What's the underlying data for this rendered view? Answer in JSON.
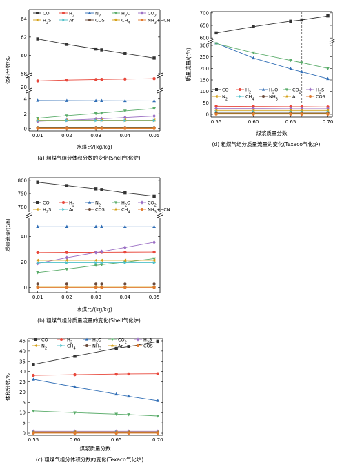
{
  "chart_data": [
    {
      "type": "line",
      "id": "a",
      "caption": "(a) 粗煤气组分体积分数的变化(Shell气化炉)",
      "xlabel": "水煤比/(kg/kg)",
      "ylabel": "体积分数/%",
      "x": [
        0.01,
        0.02,
        0.03,
        0.032,
        0.04,
        0.05
      ],
      "xticks": [
        "0.01",
        "0.02",
        "0.03",
        "0.04",
        "0.05"
      ],
      "segments": [
        {
          "range": [
            58,
            65
          ],
          "ticks": [
            "58",
            "60",
            "62",
            "64"
          ]
        },
        {
          "range": [
            19.8,
            21.2
          ],
          "ticks": [
            "20"
          ]
        },
        {
          "range": [
            -0.3,
            5
          ],
          "ticks": [
            "0",
            "2",
            "4"
          ]
        }
      ],
      "legend": [
        "CO",
        "H2",
        "N2",
        "H2O",
        "CO2",
        "H2S",
        "Ar",
        "COS",
        "CH4",
        "NH3+HCN"
      ],
      "series": [
        {
          "name": "CO",
          "color": "#333333",
          "marker": "square",
          "values": [
            61.8,
            61.2,
            60.7,
            60.6,
            60.2,
            59.7
          ]
        },
        {
          "name": "H2",
          "color": "#e8473b",
          "marker": "circle",
          "values": [
            20.7,
            20.8,
            20.85,
            20.87,
            20.9,
            20.95
          ]
        },
        {
          "name": "N2",
          "color": "#2f6db5",
          "marker": "triangle-up",
          "values": [
            3.8,
            3.78,
            3.77,
            3.77,
            3.76,
            3.75
          ]
        },
        {
          "name": "H2O",
          "color": "#5aac6a",
          "marker": "triangle-down",
          "values": [
            1.4,
            1.75,
            2.05,
            2.12,
            2.4,
            2.7
          ]
        },
        {
          "name": "CO2",
          "color": "#9b6fc4",
          "marker": "diamond",
          "values": [
            1.0,
            1.15,
            1.3,
            1.33,
            1.5,
            1.7
          ]
        },
        {
          "name": "H2S",
          "color": "#d4a017",
          "marker": "triangle-left",
          "values": [
            1.15,
            1.15,
            1.15,
            1.15,
            1.15,
            1.15
          ]
        },
        {
          "name": "Ar",
          "color": "#4dc0c8",
          "marker": "triangle-right",
          "values": [
            1.1,
            1.1,
            1.1,
            1.1,
            1.1,
            1.1
          ]
        },
        {
          "name": "COS",
          "color": "#6a4a3a",
          "marker": "circle",
          "values": [
            0.12,
            0.12,
            0.12,
            0.12,
            0.12,
            0.12
          ]
        },
        {
          "name": "CH4",
          "color": "#d4a017",
          "marker": "star",
          "values": [
            0.05,
            0.05,
            0.05,
            0.05,
            0.05,
            0.05
          ]
        },
        {
          "name": "NH3+HCN",
          "color": "#e07a2e",
          "marker": "circle",
          "values": [
            0.02,
            0.02,
            0.02,
            0.02,
            0.02,
            0.02
          ]
        }
      ]
    },
    {
      "type": "line",
      "id": "b",
      "caption": "(b) 粗煤气组分质量流量的变化(Shell气化炉)",
      "xlabel": "水煤比/(kg/kg)",
      "ylabel": "质量流量/(t/h)",
      "x": [
        0.01,
        0.02,
        0.03,
        0.032,
        0.04,
        0.05
      ],
      "xticks": [
        "0.01",
        "0.02",
        "0.03",
        "0.04",
        "0.05"
      ],
      "segments": [
        {
          "range": [
            776,
            802
          ],
          "ticks": [
            "780",
            "790",
            "800"
          ]
        },
        {
          "range": [
            -4,
            55
          ],
          "ticks": [
            "0",
            "20",
            "40"
          ]
        }
      ],
      "legend": [
        "CO",
        "H2",
        "N2",
        "H2O",
        "CO2",
        "H2S",
        "Ar",
        "COS",
        "CH4",
        "NH3+HCN"
      ],
      "series": [
        {
          "name": "CO",
          "color": "#333333",
          "marker": "square",
          "values": [
            798.5,
            796,
            793.5,
            793,
            790.5,
            788
          ]
        },
        {
          "name": "H2",
          "color": "#e8473b",
          "marker": "circle",
          "values": [
            27.5,
            27.6,
            27.7,
            27.7,
            27.8,
            27.9
          ]
        },
        {
          "name": "N2",
          "color": "#2f6db5",
          "marker": "triangle-up",
          "values": [
            47.8,
            47.8,
            47.8,
            47.8,
            47.8,
            47.8
          ]
        },
        {
          "name": "H2O",
          "color": "#5aac6a",
          "marker": "triangle-down",
          "values": [
            11.8,
            14.5,
            17.5,
            18,
            20,
            22.8
          ]
        },
        {
          "name": "CO2",
          "color": "#9b6fc4",
          "marker": "diamond",
          "values": [
            19,
            23.5,
            27.5,
            28.3,
            31.5,
            35.6
          ]
        },
        {
          "name": "H2S",
          "color": "#d4a017",
          "marker": "triangle-left",
          "values": [
            21.5,
            21.5,
            21.5,
            21.5,
            21.5,
            21.5
          ]
        },
        {
          "name": "Ar",
          "color": "#4dc0c8",
          "marker": "triangle-right",
          "values": [
            19.5,
            19.5,
            19.5,
            19.5,
            19.5,
            19.5
          ]
        },
        {
          "name": "COS",
          "color": "#6a4a3a",
          "marker": "circle",
          "values": [
            2.8,
            2.8,
            2.8,
            2.8,
            2.8,
            2.8
          ]
        },
        {
          "name": "CH4",
          "color": "#d4a017",
          "marker": "star",
          "values": [
            0.3,
            0.3,
            0.3,
            0.3,
            0.3,
            0.3
          ]
        },
        {
          "name": "NH3+HCN",
          "color": "#e07a2e",
          "marker": "circle",
          "values": [
            0.1,
            0.1,
            0.1,
            0.1,
            0.1,
            0.1
          ]
        }
      ]
    },
    {
      "type": "line",
      "id": "c",
      "caption": "(c) 粗煤气组分体积分数的变化(Texaco气化炉)",
      "xlabel": "煤浆质量分数",
      "ylabel": "体积分数/%",
      "x": [
        0.55,
        0.6,
        0.65,
        0.665,
        0.7
      ],
      "xticks": [
        "0.55",
        "0.60",
        "0.65",
        "0.70"
      ],
      "segments": [
        {
          "range": [
            -1,
            46
          ],
          "ticks": [
            "0",
            "5",
            "10",
            "15",
            "20",
            "25",
            "30",
            "35",
            "40",
            "45"
          ]
        }
      ],
      "legend": [
        "CO",
        "H2",
        "H2O",
        "CO2",
        "H2S",
        "N2",
        "CH4",
        "NH3",
        "Ar",
        "COS"
      ],
      "series": [
        {
          "name": "CO",
          "color": "#333333",
          "marker": "square",
          "values": [
            33.5,
            37.5,
            41.3,
            42.2,
            44.7
          ]
        },
        {
          "name": "H2",
          "color": "#e8473b",
          "marker": "circle",
          "values": [
            28.2,
            28.5,
            28.8,
            28.9,
            29.0
          ]
        },
        {
          "name": "H2O",
          "color": "#2f6db5",
          "marker": "triangle-up",
          "values": [
            26.2,
            22.5,
            19.0,
            18.0,
            15.8
          ]
        },
        {
          "name": "CO2",
          "color": "#5aac6a",
          "marker": "triangle-down",
          "values": [
            10.8,
            10.0,
            9.3,
            9.1,
            8.4
          ]
        },
        {
          "name": "H2S",
          "color": "#9b6fc4",
          "marker": "diamond",
          "values": [
            0.9,
            0.9,
            0.9,
            0.9,
            0.9
          ]
        },
        {
          "name": "N2",
          "color": "#d4a017",
          "marker": "triangle-left",
          "values": [
            0.6,
            0.6,
            0.6,
            0.6,
            0.6
          ]
        },
        {
          "name": "CH4",
          "color": "#4dc0c8",
          "marker": "triangle-right",
          "values": [
            0.4,
            0.4,
            0.4,
            0.4,
            0.4
          ]
        },
        {
          "name": "NH3",
          "color": "#6a4a3a",
          "marker": "circle",
          "values": [
            0.2,
            0.2,
            0.2,
            0.2,
            0.2
          ]
        },
        {
          "name": "Ar",
          "color": "#d4a017",
          "marker": "star",
          "values": [
            0.1,
            0.1,
            0.1,
            0.1,
            0.1
          ]
        },
        {
          "name": "COS",
          "color": "#e07a2e",
          "marker": "circle",
          "values": [
            0.05,
            0.05,
            0.05,
            0.05,
            0.05
          ]
        }
      ]
    },
    {
      "type": "line",
      "id": "d",
      "caption": "(d) 粗煤气组分质量流量的变化(Texaco气化炉)",
      "xlabel": "煤浆质量分数",
      "ylabel": "质量流量/(t/h)",
      "x": [
        0.55,
        0.6,
        0.65,
        0.665,
        0.7
      ],
      "xticks": [
        "0.55",
        "0.60",
        "0.65",
        "0.70"
      ],
      "vline": 0.665,
      "segments": [
        {
          "range": [
            595,
            705
          ],
          "ticks": [
            "600",
            "650",
            "700"
          ]
        },
        {
          "range": [
            -12,
            312
          ],
          "ticks": [
            "0",
            "50",
            "100",
            "150",
            "200",
            "250",
            "300"
          ]
        }
      ],
      "legend": [
        "CO",
        "H2",
        "H2O",
        "CO2",
        "H2S",
        "N2",
        "CH4",
        "NH3",
        "Ar",
        "COS"
      ],
      "series": [
        {
          "name": "CO",
          "color": "#333333",
          "marker": "square",
          "values": [
            620,
            645,
            667,
            672,
            688
          ]
        },
        {
          "name": "H2",
          "color": "#e8473b",
          "marker": "circle",
          "values": [
            35,
            34,
            33,
            33,
            32
          ]
        },
        {
          "name": "H2O",
          "color": "#2f6db5",
          "marker": "triangle-up",
          "values": [
            310,
            245,
            198,
            185,
            155
          ]
        },
        {
          "name": "CO2",
          "color": "#5aac6a",
          "marker": "triangle-down",
          "values": [
            308,
            268,
            235,
            225,
            200
          ]
        },
        {
          "name": "H2S",
          "color": "#9b6fc4",
          "marker": "diamond",
          "values": [
            25,
            25,
            24,
            24,
            24
          ]
        },
        {
          "name": "N2",
          "color": "#d4a017",
          "marker": "triangle-left",
          "values": [
            17,
            17,
            17,
            17,
            17
          ]
        },
        {
          "name": "CH4",
          "color": "#4dc0c8",
          "marker": "triangle-right",
          "values": [
            11,
            11,
            11,
            11,
            11
          ]
        },
        {
          "name": "NH3",
          "color": "#6a4a3a",
          "marker": "circle",
          "values": [
            6,
            6,
            6,
            6,
            6
          ]
        },
        {
          "name": "Ar",
          "color": "#d4a017",
          "marker": "star",
          "values": [
            3,
            3,
            3,
            3,
            3
          ]
        },
        {
          "name": "COS",
          "color": "#e07a2e",
          "marker": "circle",
          "values": [
            1,
            1,
            1,
            1,
            1
          ]
        }
      ]
    }
  ]
}
